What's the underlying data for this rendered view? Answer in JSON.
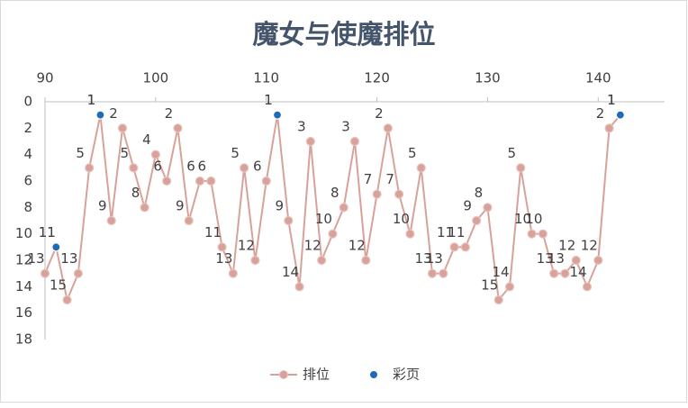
{
  "chart_data": {
    "type": "line",
    "title": "魔女与使魔排位",
    "xlim": [
      90,
      146
    ],
    "xticks": [
      90,
      100,
      110,
      120,
      130,
      140
    ],
    "ylim": [
      0,
      18
    ],
    "yticks": [
      0,
      2,
      4,
      6,
      8,
      10,
      12,
      14,
      16,
      18
    ],
    "y_inverted": true,
    "grid": false,
    "legend": "bottom",
    "series": [
      {
        "name": "排位",
        "color": "#d8a29b",
        "x": [
          90,
          91,
          92,
          93,
          94,
          95,
          96,
          97,
          98,
          99,
          100,
          101,
          102,
          103,
          104,
          105,
          106,
          107,
          108,
          109,
          110,
          111,
          112,
          113,
          114,
          115,
          116,
          117,
          118,
          119,
          120,
          121,
          122,
          123,
          124,
          125,
          126,
          127,
          128,
          129,
          130,
          131,
          132,
          133,
          134,
          135,
          136,
          137,
          138,
          139,
          140,
          141,
          142
        ],
        "values": [
          13,
          11,
          15,
          13,
          5,
          1,
          9,
          2,
          5,
          8,
          4,
          6,
          2,
          9,
          6,
          6,
          11,
          13,
          5,
          12,
          6,
          1,
          9,
          14,
          3,
          12,
          10,
          8,
          3,
          12,
          7,
          2,
          7,
          10,
          5,
          13,
          13,
          11,
          11,
          9,
          8,
          15,
          14,
          5,
          10,
          10,
          13,
          13,
          12,
          14,
          12,
          2,
          1
        ]
      },
      {
        "name": "彩页",
        "color": "#1f6bb5",
        "x": [
          91,
          95,
          111,
          142
        ],
        "values": [
          11,
          1,
          1,
          1
        ]
      }
    ]
  }
}
